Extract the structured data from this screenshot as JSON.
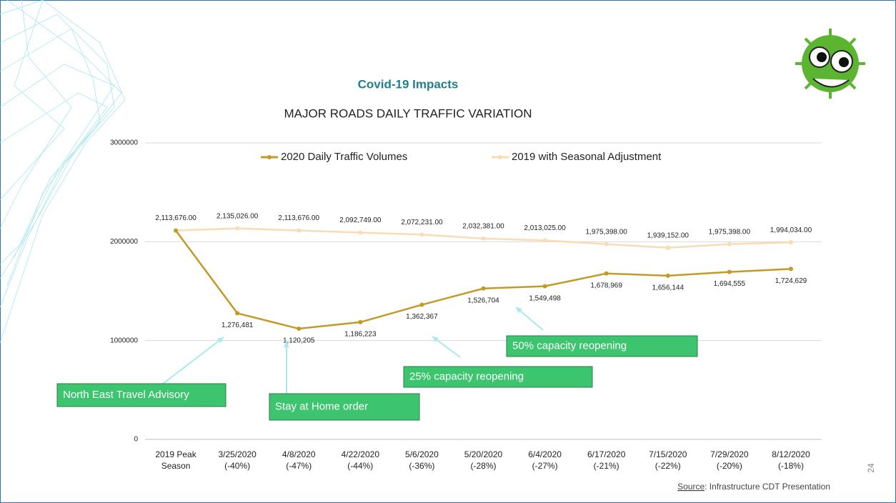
{
  "header": {
    "title": "Covid-19 Impacts"
  },
  "chart_data": {
    "type": "line",
    "title": "MAJOR ROADS DAILY TRAFFIC VARIATION",
    "categories": [
      "2019 Peak Season",
      "3/25/2020 (-40%)",
      "4/8/2020 (-47%)",
      "4/22/2020 (-44%)",
      "5/6/2020 (-36%)",
      "5/20/2020 (-28%)",
      "6/4/2020 (-27%)",
      "6/17/2020 (-21%)",
      "7/15/2020 (-22%)",
      "7/29/2020 (-20%)",
      "8/12/2020 (-18%)"
    ],
    "series": [
      {
        "name": "2020 Daily Traffic Volumes",
        "color": "#c39a26",
        "values": [
          2113676,
          1276481,
          1120205,
          1186223,
          1362367,
          1526704,
          1549498,
          1678969,
          1656144,
          1694555,
          1724629
        ],
        "value_labels": [
          null,
          "1,276,481",
          "1,120,205",
          "1,186,223",
          "1,362,367",
          "1,526,704",
          "1,549,498",
          "1,678,969",
          "1,656,144",
          "1,694,555",
          "1,724,629"
        ]
      },
      {
        "name": "2019 with Seasonal Adjustment",
        "color": "#f8dcb3",
        "values": [
          2113676,
          2135026,
          2113676,
          2092749,
          2072231,
          2032381,
          2013025,
          1975398,
          1939152,
          1975398,
          1994034
        ],
        "value_labels": [
          "2,113,676.00",
          "2,135,026.00",
          "2,113,676.00",
          "2,092,749.00",
          "2,072,231.00",
          "2,032,381.00",
          "2,013,025.00",
          "1,975,398.00",
          "1,939,152.00",
          "1,975,398.00",
          "1,994,034.00"
        ]
      }
    ],
    "ylim": [
      0,
      3000000
    ],
    "yticks": [
      0,
      1000000,
      2000000,
      3000000
    ],
    "grid": true,
    "annotations": [
      {
        "text": "North East Travel Advisory"
      },
      {
        "text": "Stay at Home order"
      },
      {
        "text": "25% capacity reopening"
      },
      {
        "text": "50% capacity reopening"
      }
    ]
  },
  "footer": {
    "source_label": "Source",
    "source_text": ": Infrastructure CDT Presentation",
    "page_number": "24"
  }
}
